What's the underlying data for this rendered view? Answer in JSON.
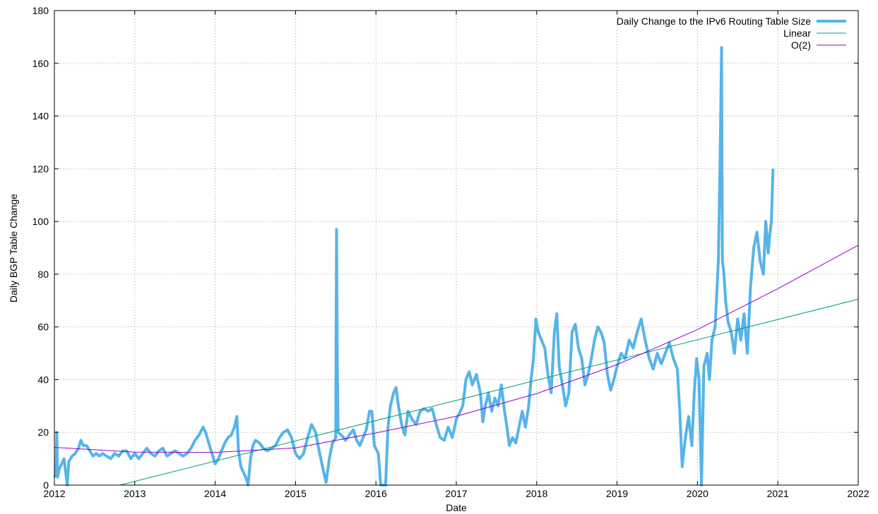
{
  "chart_data": {
    "type": "line",
    "title": "",
    "xlabel": "Date",
    "ylabel": "Daily BGP Table Change",
    "xlim": [
      2012,
      2022
    ],
    "ylim": [
      0,
      180
    ],
    "grid": true,
    "legend_position": "top-right",
    "x_ticks": [
      "2012",
      "2013",
      "2014",
      "2015",
      "2016",
      "2017",
      "2018",
      "2019",
      "2020",
      "2021",
      "2022"
    ],
    "y_ticks": [
      "0",
      "20",
      "40",
      "60",
      "80",
      "100",
      "120",
      "140",
      "160",
      "180"
    ],
    "series": [
      {
        "name": "Daily Change to the IPv6 Routing Table Size",
        "color": "#56b4e9",
        "style": "thick-line",
        "points": [
          [
            2012.0,
            3
          ],
          [
            2012.02,
            4
          ],
          [
            2012.03,
            20
          ],
          [
            2012.04,
            3
          ],
          [
            2012.06,
            6
          ],
          [
            2012.09,
            8
          ],
          [
            2012.12,
            10
          ],
          [
            2012.16,
            0
          ],
          [
            2012.18,
            9
          ],
          [
            2012.22,
            11
          ],
          [
            2012.26,
            12
          ],
          [
            2012.3,
            14
          ],
          [
            2012.33,
            17
          ],
          [
            2012.36,
            15
          ],
          [
            2012.4,
            15
          ],
          [
            2012.44,
            13
          ],
          [
            2012.48,
            11
          ],
          [
            2012.52,
            12
          ],
          [
            2012.56,
            11
          ],
          [
            2012.6,
            12
          ],
          [
            2012.65,
            11
          ],
          [
            2012.7,
            10
          ],
          [
            2012.75,
            12
          ],
          [
            2012.8,
            11
          ],
          [
            2012.85,
            13
          ],
          [
            2012.9,
            13
          ],
          [
            2012.95,
            10
          ],
          [
            2013.0,
            12
          ],
          [
            2013.05,
            10
          ],
          [
            2013.1,
            12
          ],
          [
            2013.15,
            14
          ],
          [
            2013.2,
            12
          ],
          [
            2013.25,
            11
          ],
          [
            2013.3,
            13
          ],
          [
            2013.35,
            14
          ],
          [
            2013.4,
            11
          ],
          [
            2013.45,
            12
          ],
          [
            2013.5,
            13
          ],
          [
            2013.55,
            12
          ],
          [
            2013.6,
            11
          ],
          [
            2013.65,
            12
          ],
          [
            2013.7,
            14
          ],
          [
            2013.75,
            17
          ],
          [
            2013.8,
            19
          ],
          [
            2013.85,
            22
          ],
          [
            2013.88,
            20
          ],
          [
            2013.92,
            16
          ],
          [
            2013.96,
            12
          ],
          [
            2014.0,
            8
          ],
          [
            2014.04,
            10
          ],
          [
            2014.08,
            13
          ],
          [
            2014.12,
            16
          ],
          [
            2014.16,
            18
          ],
          [
            2014.2,
            19
          ],
          [
            2014.24,
            22
          ],
          [
            2014.27,
            26
          ],
          [
            2014.29,
            13
          ],
          [
            2014.32,
            7
          ],
          [
            2014.35,
            5
          ],
          [
            2014.38,
            3
          ],
          [
            2014.41,
            0
          ],
          [
            2014.44,
            10
          ],
          [
            2014.47,
            15
          ],
          [
            2014.5,
            17
          ],
          [
            2014.55,
            16
          ],
          [
            2014.6,
            14
          ],
          [
            2014.65,
            13
          ],
          [
            2014.7,
            14
          ],
          [
            2014.75,
            15
          ],
          [
            2014.8,
            18
          ],
          [
            2014.85,
            20
          ],
          [
            2014.9,
            21
          ],
          [
            2014.95,
            18
          ],
          [
            2015.0,
            12
          ],
          [
            2015.05,
            10
          ],
          [
            2015.1,
            12
          ],
          [
            2015.15,
            18
          ],
          [
            2015.2,
            23
          ],
          [
            2015.25,
            20
          ],
          [
            2015.3,
            12
          ],
          [
            2015.35,
            5
          ],
          [
            2015.38,
            1
          ],
          [
            2015.42,
            10
          ],
          [
            2015.46,
            16
          ],
          [
            2015.5,
            18
          ],
          [
            2015.51,
            97
          ],
          [
            2015.52,
            45
          ],
          [
            2015.53,
            20
          ],
          [
            2015.57,
            19
          ],
          [
            2015.62,
            17
          ],
          [
            2015.67,
            19
          ],
          [
            2015.72,
            21
          ],
          [
            2015.76,
            17
          ],
          [
            2015.8,
            15
          ],
          [
            2015.84,
            18
          ],
          [
            2015.88,
            21
          ],
          [
            2015.92,
            28
          ],
          [
            2015.95,
            28
          ],
          [
            2015.98,
            15
          ],
          [
            2016.03,
            12
          ],
          [
            2016.06,
            0
          ],
          [
            2016.12,
            0
          ],
          [
            2016.15,
            22
          ],
          [
            2016.18,
            30
          ],
          [
            2016.22,
            35
          ],
          [
            2016.25,
            37
          ],
          [
            2016.28,
            30
          ],
          [
            2016.32,
            23
          ],
          [
            2016.36,
            19
          ],
          [
            2016.4,
            28
          ],
          [
            2016.45,
            25
          ],
          [
            2016.5,
            23
          ],
          [
            2016.55,
            28
          ],
          [
            2016.6,
            29
          ],
          [
            2016.65,
            28
          ],
          [
            2016.7,
            29
          ],
          [
            2016.75,
            23
          ],
          [
            2016.8,
            18
          ],
          [
            2016.85,
            17
          ],
          [
            2016.9,
            22
          ],
          [
            2016.95,
            18
          ],
          [
            2017.0,
            25
          ],
          [
            2017.05,
            28
          ],
          [
            2017.08,
            30
          ],
          [
            2017.12,
            40
          ],
          [
            2017.16,
            43
          ],
          [
            2017.2,
            38
          ],
          [
            2017.25,
            42
          ],
          [
            2017.3,
            35
          ],
          [
            2017.33,
            24
          ],
          [
            2017.36,
            30
          ],
          [
            2017.4,
            35
          ],
          [
            2017.44,
            28
          ],
          [
            2017.48,
            33
          ],
          [
            2017.52,
            30
          ],
          [
            2017.56,
            38
          ],
          [
            2017.6,
            28
          ],
          [
            2017.63,
            22
          ],
          [
            2017.66,
            15
          ],
          [
            2017.7,
            18
          ],
          [
            2017.74,
            16
          ],
          [
            2017.78,
            22
          ],
          [
            2017.82,
            28
          ],
          [
            2017.86,
            22
          ],
          [
            2017.9,
            30
          ],
          [
            2017.93,
            40
          ],
          [
            2017.96,
            48
          ],
          [
            2017.99,
            63
          ],
          [
            2018.02,
            58
          ],
          [
            2018.06,
            55
          ],
          [
            2018.1,
            52
          ],
          [
            2018.14,
            42
          ],
          [
            2018.18,
            35
          ],
          [
            2018.22,
            58
          ],
          [
            2018.25,
            65
          ],
          [
            2018.28,
            45
          ],
          [
            2018.32,
            38
          ],
          [
            2018.36,
            30
          ],
          [
            2018.4,
            35
          ],
          [
            2018.44,
            58
          ],
          [
            2018.48,
            61
          ],
          [
            2018.52,
            52
          ],
          [
            2018.56,
            48
          ],
          [
            2018.6,
            38
          ],
          [
            2018.64,
            42
          ],
          [
            2018.68,
            48
          ],
          [
            2018.72,
            55
          ],
          [
            2018.76,
            60
          ],
          [
            2018.8,
            58
          ],
          [
            2018.84,
            54
          ],
          [
            2018.88,
            42
          ],
          [
            2018.92,
            36
          ],
          [
            2018.96,
            40
          ],
          [
            2019.0,
            45
          ],
          [
            2019.05,
            50
          ],
          [
            2019.1,
            48
          ],
          [
            2019.15,
            55
          ],
          [
            2019.2,
            52
          ],
          [
            2019.25,
            58
          ],
          [
            2019.3,
            63
          ],
          [
            2019.35,
            55
          ],
          [
            2019.4,
            48
          ],
          [
            2019.45,
            44
          ],
          [
            2019.5,
            50
          ],
          [
            2019.55,
            46
          ],
          [
            2019.6,
            50
          ],
          [
            2019.65,
            54
          ],
          [
            2019.7,
            48
          ],
          [
            2019.75,
            44
          ],
          [
            2019.78,
            28
          ],
          [
            2019.81,
            7
          ],
          [
            2019.85,
            18
          ],
          [
            2019.89,
            26
          ],
          [
            2019.93,
            15
          ],
          [
            2019.96,
            35
          ],
          [
            2019.99,
            48
          ],
          [
            2020.02,
            40
          ],
          [
            2020.05,
            0
          ],
          [
            2020.08,
            45
          ],
          [
            2020.12,
            50
          ],
          [
            2020.15,
            40
          ],
          [
            2020.18,
            55
          ],
          [
            2020.22,
            60
          ],
          [
            2020.26,
            85
          ],
          [
            2020.28,
            120
          ],
          [
            2020.29,
            142
          ],
          [
            2020.3,
            166
          ],
          [
            2020.31,
            85
          ],
          [
            2020.33,
            80
          ],
          [
            2020.35,
            70
          ],
          [
            2020.38,
            62
          ],
          [
            2020.42,
            58
          ],
          [
            2020.46,
            50
          ],
          [
            2020.5,
            63
          ],
          [
            2020.54,
            55
          ],
          [
            2020.58,
            65
          ],
          [
            2020.62,
            50
          ],
          [
            2020.66,
            75
          ],
          [
            2020.7,
            90
          ],
          [
            2020.74,
            96
          ],
          [
            2020.78,
            85
          ],
          [
            2020.82,
            80
          ],
          [
            2020.85,
            100
          ],
          [
            2020.88,
            88
          ],
          [
            2020.9,
            95
          ],
          [
            2020.92,
            100
          ],
          [
            2020.94,
            120
          ]
        ]
      },
      {
        "name": "Linear",
        "color": "#009e73",
        "style": "thin-line",
        "points": [
          [
            2012.815,
            0
          ],
          [
            2022,
            70.5
          ]
        ]
      },
      {
        "name": "O(2)",
        "color": "#9400d3",
        "style": "thin-line",
        "points": [
          [
            2012,
            14.3
          ],
          [
            2013,
            12.5
          ],
          [
            2014,
            12.4
          ],
          [
            2015,
            14.1
          ],
          [
            2016,
            19.8
          ],
          [
            2017,
            26.1
          ],
          [
            2018,
            34.7
          ],
          [
            2019,
            45.7
          ],
          [
            2020,
            59.0
          ],
          [
            2021,
            74.5
          ],
          [
            2022,
            91.0
          ]
        ]
      }
    ]
  }
}
